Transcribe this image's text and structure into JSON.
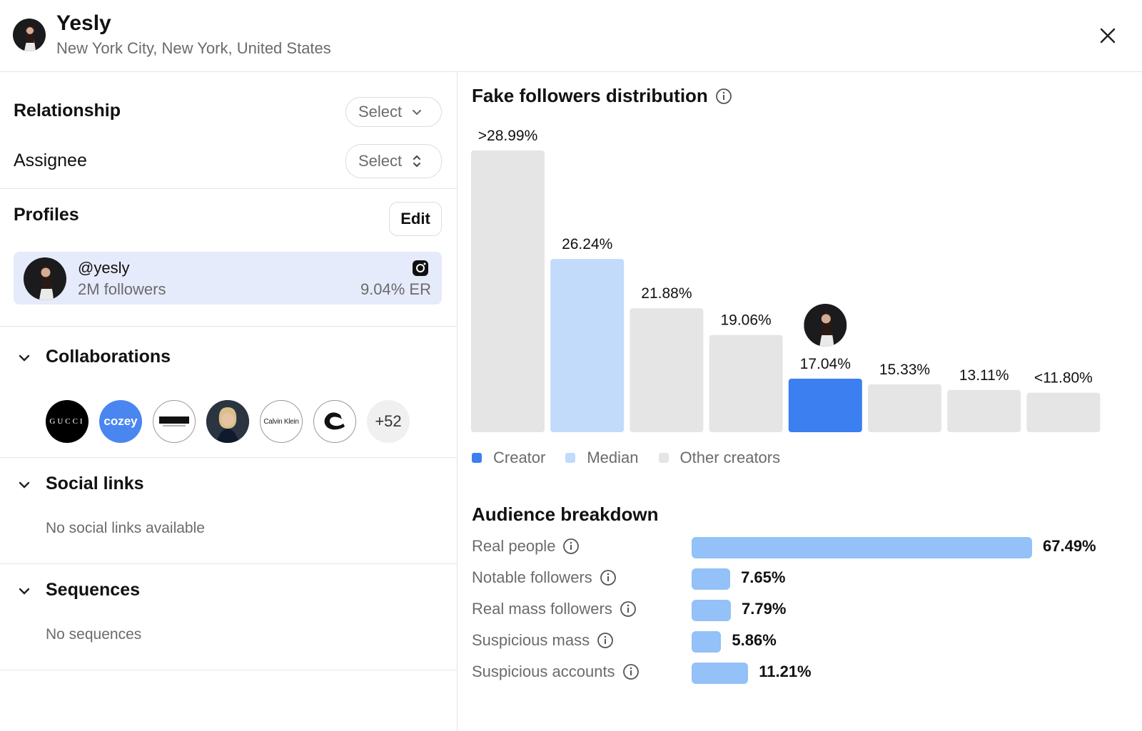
{
  "header": {
    "name": "Yesly",
    "location": "New York City, New York, United States"
  },
  "relationship": {
    "label": "Relationship",
    "select_label": "Select"
  },
  "assignee": {
    "label": "Assignee",
    "select_label": "Select"
  },
  "profiles": {
    "title": "Profiles",
    "edit_label": "Edit",
    "card": {
      "handle": "@yesly",
      "followers": "2M followers",
      "er": "9.04% ER"
    }
  },
  "collaborations": {
    "title": "Collaborations",
    "items": [
      "GUCCI",
      "cozey",
      "Neutrogena",
      "person",
      "Calvin Klein",
      "Coach"
    ],
    "more": "+52"
  },
  "social_links": {
    "title": "Social links",
    "empty": "No social links available"
  },
  "sequences": {
    "title": "Sequences",
    "empty": "No sequences"
  },
  "fake_followers": {
    "title": "Fake followers distribution",
    "legend": {
      "creator": "Creator",
      "median": "Median",
      "other": "Other creators"
    }
  },
  "chart_data": {
    "type": "bar",
    "title": "Fake followers distribution",
    "categories": [
      "bin1",
      "bin2",
      "bin3",
      "bin4",
      "bin5",
      "bin6",
      "bin7",
      "bin8"
    ],
    "labels": [
      ">28.99%",
      "26.24%",
      "21.88%",
      "19.06%",
      "17.04%",
      "15.33%",
      "13.11%",
      "<11.80%"
    ],
    "values": [
      28.99,
      26.24,
      21.88,
      19.06,
      17.04,
      15.33,
      13.11,
      11.8
    ],
    "bar_heights_relative": [
      1.0,
      0.615,
      0.44,
      0.345,
      0.19,
      0.17,
      0.15,
      0.14
    ],
    "roles": [
      "other",
      "median",
      "other",
      "other",
      "creator",
      "other",
      "other",
      "other"
    ],
    "colors": {
      "creator": "#3b7ff0",
      "median": "#c2dbfa",
      "other": "#e5e5e6"
    },
    "legend": [
      "Creator",
      "Median",
      "Other creators"
    ]
  },
  "audience": {
    "title": "Audience breakdown",
    "rows": [
      {
        "label": "Real people",
        "value": "67.49%",
        "pct": 67.49
      },
      {
        "label": "Notable followers",
        "value": "7.65%",
        "pct": 7.65
      },
      {
        "label": "Real mass followers",
        "value": "7.79%",
        "pct": 7.79
      },
      {
        "label": "Suspicious mass",
        "value": "5.86%",
        "pct": 5.86
      },
      {
        "label": "Suspicious accounts",
        "value": "11.21%",
        "pct": 11.21
      }
    ]
  }
}
